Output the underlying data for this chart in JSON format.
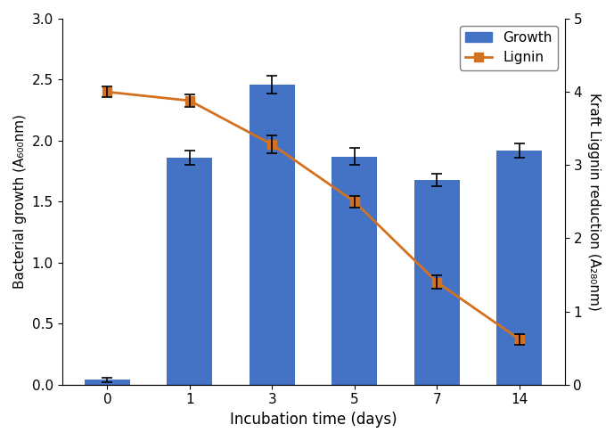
{
  "days": [
    0,
    1,
    3,
    5,
    7,
    14
  ],
  "x_positions": [
    0,
    1,
    2,
    3,
    4,
    5
  ],
  "bar_values": [
    0.04,
    1.86,
    2.46,
    1.87,
    1.68,
    1.92
  ],
  "bar_errors": [
    0.02,
    0.06,
    0.07,
    0.07,
    0.05,
    0.06
  ],
  "lignin_values": [
    4.0,
    3.88,
    3.28,
    2.5,
    1.4,
    0.62
  ],
  "lignin_errors": [
    0.07,
    0.08,
    0.12,
    0.08,
    0.09,
    0.07
  ],
  "bar_color": "#4472C4",
  "line_color": "#D4711F",
  "marker_color": "#D4711F",
  "bar_width": 0.55,
  "xlim": [
    -0.55,
    5.55
  ],
  "ylim_left": [
    0,
    3.0
  ],
  "ylim_right": [
    0.0,
    5.0
  ],
  "yticks_left": [
    0.0,
    0.5,
    1.0,
    1.5,
    2.0,
    2.5,
    3.0
  ],
  "yticks_right": [
    0.0,
    1.0,
    2.0,
    3.0,
    4.0,
    5.0
  ],
  "xlabel": "Incubation time (days)",
  "ylabel_left": "Bacterial growth (A₆₀₀nm)",
  "ylabel_right": "Kraft Liggnin reduction (A₂₈₀nm)",
  "legend_labels": [
    "Growth",
    "Lignin"
  ],
  "xtick_labels": [
    "0",
    "1",
    "3",
    "5",
    "7",
    "14"
  ]
}
